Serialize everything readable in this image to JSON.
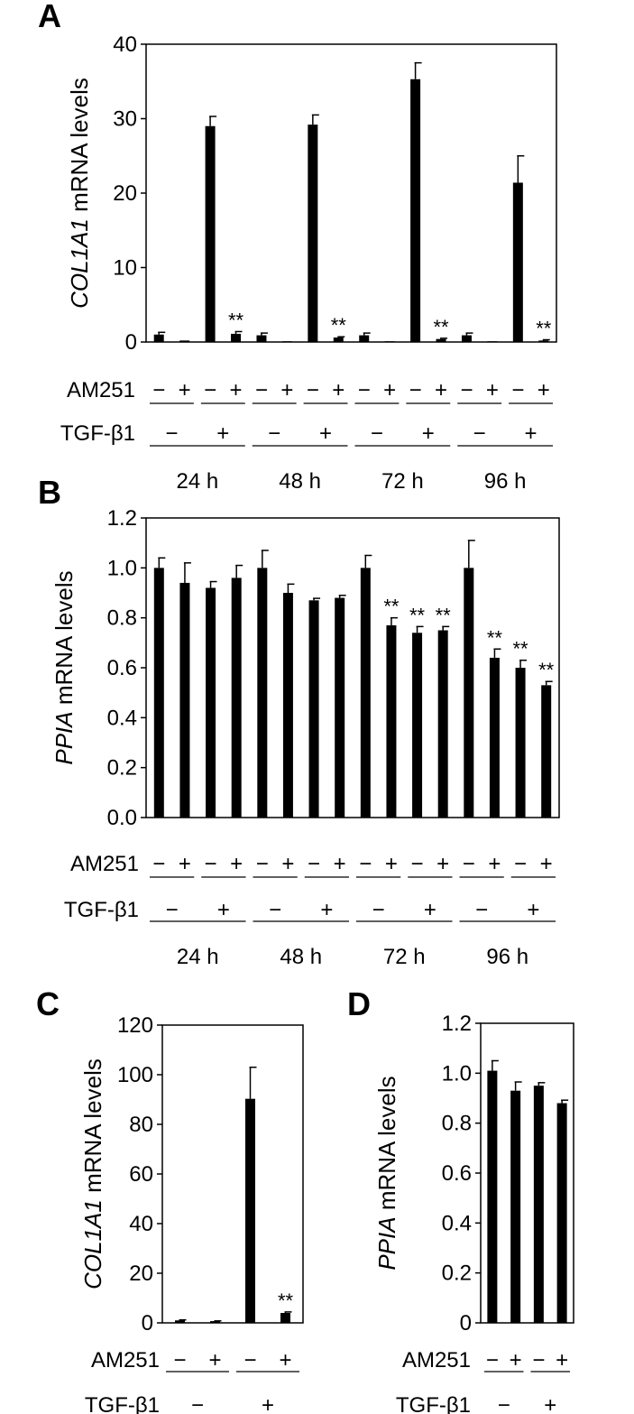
{
  "chart_data": [
    {
      "panel": "A",
      "type": "bar",
      "ylabel_italic": "COL1A1",
      "ylabel_rest": " mRNA levels",
      "ylim": [
        0,
        40
      ],
      "yticks": [
        "0",
        "10",
        "20",
        "30",
        "40"
      ],
      "grid": false,
      "am251_label": "AM251",
      "tgf_label": "TGF-β1",
      "am251": [
        "−",
        "+",
        "−",
        "+",
        "−",
        "+",
        "−",
        "+",
        "−",
        "+",
        "−",
        "+",
        "−",
        "+",
        "−",
        "+"
      ],
      "tgf": [
        "−",
        "+",
        "−",
        "+",
        "−",
        "+",
        "−",
        "+"
      ],
      "times": [
        "24 h",
        "48 h",
        "72 h",
        "96 h"
      ],
      "values": [
        1.0,
        0.2,
        29.0,
        1.1,
        0.9,
        0.1,
        29.2,
        0.6,
        0.9,
        0.1,
        35.3,
        0.4,
        0.9,
        0.1,
        21.4,
        0.2
      ],
      "errors": [
        0.3,
        0.0,
        1.3,
        0.3,
        0.3,
        0.0,
        1.3,
        0.1,
        0.3,
        0.0,
        2.2,
        0.1,
        0.3,
        0.0,
        3.6,
        0.1
      ],
      "sig": [
        "",
        "",
        "",
        "**",
        "",
        "",
        "",
        "**",
        "",
        "",
        "",
        "**",
        "",
        "",
        "",
        "**"
      ]
    },
    {
      "panel": "B",
      "type": "bar",
      "ylabel_italic": "PPIA",
      "ylabel_rest": " mRNA levels",
      "ylim": [
        0,
        1.2
      ],
      "yticks": [
        "0.0",
        "0.2",
        "0.4",
        "0.6",
        "0.8",
        "1.0",
        "1.2"
      ],
      "grid": false,
      "am251_label": "AM251",
      "tgf_label": "TGF-β1",
      "am251": [
        "−",
        "+",
        "−",
        "+",
        "−",
        "+",
        "−",
        "+",
        "−",
        "+",
        "−",
        "+",
        "−",
        "+",
        "−",
        "+"
      ],
      "tgf": [
        "−",
        "+",
        "−",
        "+",
        "−",
        "+",
        "−",
        "+"
      ],
      "times": [
        "24 h",
        "48 h",
        "72 h",
        "96 h"
      ],
      "values": [
        1.0,
        0.94,
        0.92,
        0.96,
        1.0,
        0.9,
        0.87,
        0.88,
        1.0,
        0.77,
        0.74,
        0.75,
        1.0,
        0.64,
        0.6,
        0.53
      ],
      "errors": [
        0.04,
        0.08,
        0.025,
        0.05,
        0.07,
        0.035,
        0.008,
        0.01,
        0.05,
        0.03,
        0.025,
        0.015,
        0.11,
        0.035,
        0.03,
        0.015
      ],
      "sig": [
        "",
        "",
        "",
        "",
        "",
        "",
        "",
        "",
        "",
        "**",
        "**",
        "**",
        "",
        "**",
        "**",
        "**"
      ]
    },
    {
      "panel": "C",
      "type": "bar",
      "ylabel_italic": "COL1A1",
      "ylabel_rest": " mRNA levels",
      "ylim": [
        0,
        120
      ],
      "yticks": [
        "0",
        "20",
        "40",
        "60",
        "80",
        "100",
        "120"
      ],
      "grid": false,
      "am251_label": "AM251",
      "tgf_label": "TGF-β1",
      "am251": [
        "−",
        "+",
        "−",
        "+"
      ],
      "tgf": [
        "−",
        "+"
      ],
      "values": [
        1.0,
        0.7,
        90.3,
        4.0
      ],
      "errors": [
        0.2,
        0.1,
        12.7,
        0.4
      ],
      "sig": [
        "",
        "",
        "",
        "**"
      ]
    },
    {
      "panel": "D",
      "type": "bar",
      "ylabel_italic": "PPIA",
      "ylabel_rest": " mRNA levels",
      "ylim": [
        0,
        1.2
      ],
      "yticks": [
        "0",
        "0.2",
        "0.4",
        "0.6",
        "0.8",
        "1.0",
        "1.2"
      ],
      "grid": false,
      "am251_label": "AM251",
      "tgf_label": "TGF-β1",
      "am251": [
        "−",
        "+",
        "−",
        "+"
      ],
      "tgf": [
        "−",
        "+"
      ],
      "values": [
        1.01,
        0.93,
        0.95,
        0.88
      ],
      "errors": [
        0.04,
        0.035,
        0.012,
        0.012
      ],
      "sig": [
        "",
        "",
        "",
        ""
      ]
    }
  ]
}
